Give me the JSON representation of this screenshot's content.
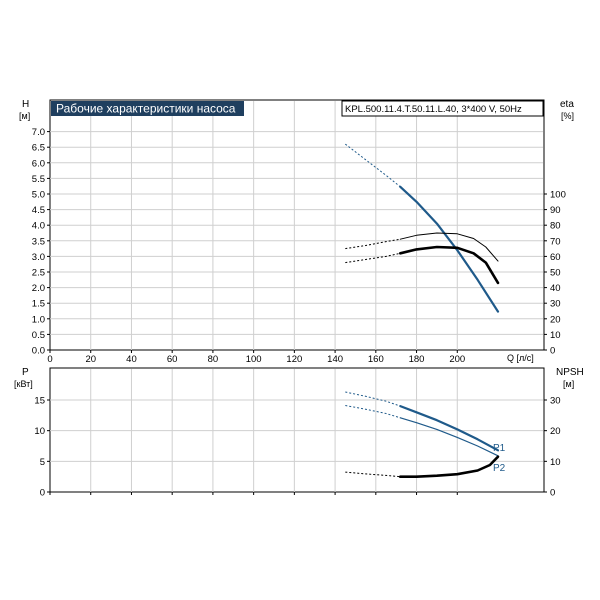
{
  "colors": {
    "curve_blue": "#1f5a8a",
    "curve_black": "#000000",
    "grid": "#cfcfcf",
    "title_bg": "#1f3f5f"
  },
  "top_panel": {
    "title": "Рабочие характеристики насоса",
    "model_label": "KPL.500.11.4.T.50.11.L.40, 3*400 V, 50Hz",
    "y_left_label": "H",
    "y_left_unit": "[м]",
    "y_right_label": "eta",
    "y_right_unit": "[%]",
    "x_label": "Q [л/с]"
  },
  "bottom_panel": {
    "y_left_label": "P",
    "y_left_unit": "[кВт]",
    "y_right_label": "NPSH",
    "y_right_unit": "[м]",
    "p1_label": "P1",
    "p2_label": "P2"
  },
  "chart_data": [
    {
      "type": "line",
      "panel": "top",
      "xlim": [
        0,
        220
      ],
      "xticks": [
        0,
        20,
        40,
        60,
        80,
        100,
        120,
        140,
        160,
        180,
        200
      ],
      "ylim_left": [
        0,
        7.0
      ],
      "yticks_left": [
        "0.0",
        "0.5",
        "1.0",
        "1.5",
        "2.0",
        "2.5",
        "3.0",
        "3.5",
        "4.0",
        "4.5",
        "5.0",
        "5.5",
        "6.0",
        "6.5",
        "7.0"
      ],
      "ylim_right": [
        0,
        100
      ],
      "yticks_right": [
        "0",
        "10",
        "20",
        "30",
        "40",
        "50",
        "60",
        "70",
        "80",
        "90",
        "100"
      ],
      "right_axis_px_per_10": 15.6,
      "grid": true,
      "series": [
        {
          "id": "H",
          "axis": "left",
          "color": "curve_blue",
          "width": 2.2,
          "dashed_x": [
            145,
            155,
            165,
            172
          ],
          "dashed_y": [
            6.6,
            6.1,
            5.6,
            5.23
          ],
          "solid_x": [
            172,
            180,
            190,
            200,
            210,
            220
          ],
          "solid_y": [
            5.23,
            4.75,
            4.05,
            3.2,
            2.25,
            1.23
          ]
        },
        {
          "id": "eta_thin",
          "axis": "right",
          "color": "curve_black",
          "width": 1,
          "dashed_x": [
            145,
            155,
            165,
            172
          ],
          "dashed_y": [
            65,
            67,
            69.5,
            71
          ],
          "solid_x": [
            172,
            180,
            190,
            200,
            208,
            214,
            220
          ],
          "solid_y": [
            71,
            73.5,
            75,
            74.5,
            71.5,
            66,
            57
          ]
        },
        {
          "id": "eta_thick",
          "axis": "right",
          "color": "curve_black",
          "width": 2.6,
          "dashed_x": [
            145,
            155,
            165,
            172
          ],
          "dashed_y": [
            56,
            58,
            60,
            62
          ],
          "solid_x": [
            172,
            180,
            190,
            200,
            208,
            214,
            220
          ],
          "solid_y": [
            62,
            64.5,
            66,
            65.5,
            62,
            56,
            43
          ]
        }
      ]
    },
    {
      "type": "line",
      "panel": "bottom",
      "xlim": [
        0,
        220
      ],
      "xticks": [
        0,
        20,
        40,
        60,
        80,
        100,
        120,
        140,
        160,
        180,
        200
      ],
      "ylim_left": [
        0,
        20
      ],
      "yticks_left": [
        "0",
        "5",
        "10",
        "15"
      ],
      "ylim_right": [
        0,
        40
      ],
      "yticks_right": [
        "0",
        "10",
        "20",
        "30"
      ],
      "grid": true,
      "series": [
        {
          "id": "P1",
          "axis": "left",
          "color": "curve_blue",
          "width": 2.2,
          "dashed_x": [
            145,
            155,
            165,
            172
          ],
          "dashed_y": [
            16.3,
            15.6,
            14.8,
            14.0
          ],
          "solid_x": [
            172,
            180,
            190,
            200,
            210,
            220
          ],
          "solid_y": [
            14.0,
            13.0,
            11.7,
            10.2,
            8.6,
            6.8
          ]
        },
        {
          "id": "P2",
          "axis": "left",
          "color": "curve_blue",
          "width": 1.2,
          "dashed_x": [
            145,
            155,
            165,
            172
          ],
          "dashed_y": [
            14.1,
            13.5,
            12.8,
            12.1
          ],
          "solid_x": [
            172,
            180,
            190,
            200,
            210,
            220
          ],
          "solid_y": [
            12.1,
            11.3,
            10.2,
            8.9,
            7.5,
            5.9
          ]
        },
        {
          "id": "NPSH",
          "axis": "right",
          "color": "curve_black",
          "width": 2.6,
          "dashed_x": [
            145,
            155,
            165,
            172
          ],
          "dashed_y": [
            6.5,
            5.9,
            5.4,
            5.0
          ],
          "solid_x": [
            172,
            180,
            190,
            200,
            210,
            216,
            220
          ],
          "solid_y": [
            5.0,
            5.0,
            5.3,
            5.8,
            7.0,
            8.8,
            11.5
          ]
        }
      ]
    }
  ]
}
